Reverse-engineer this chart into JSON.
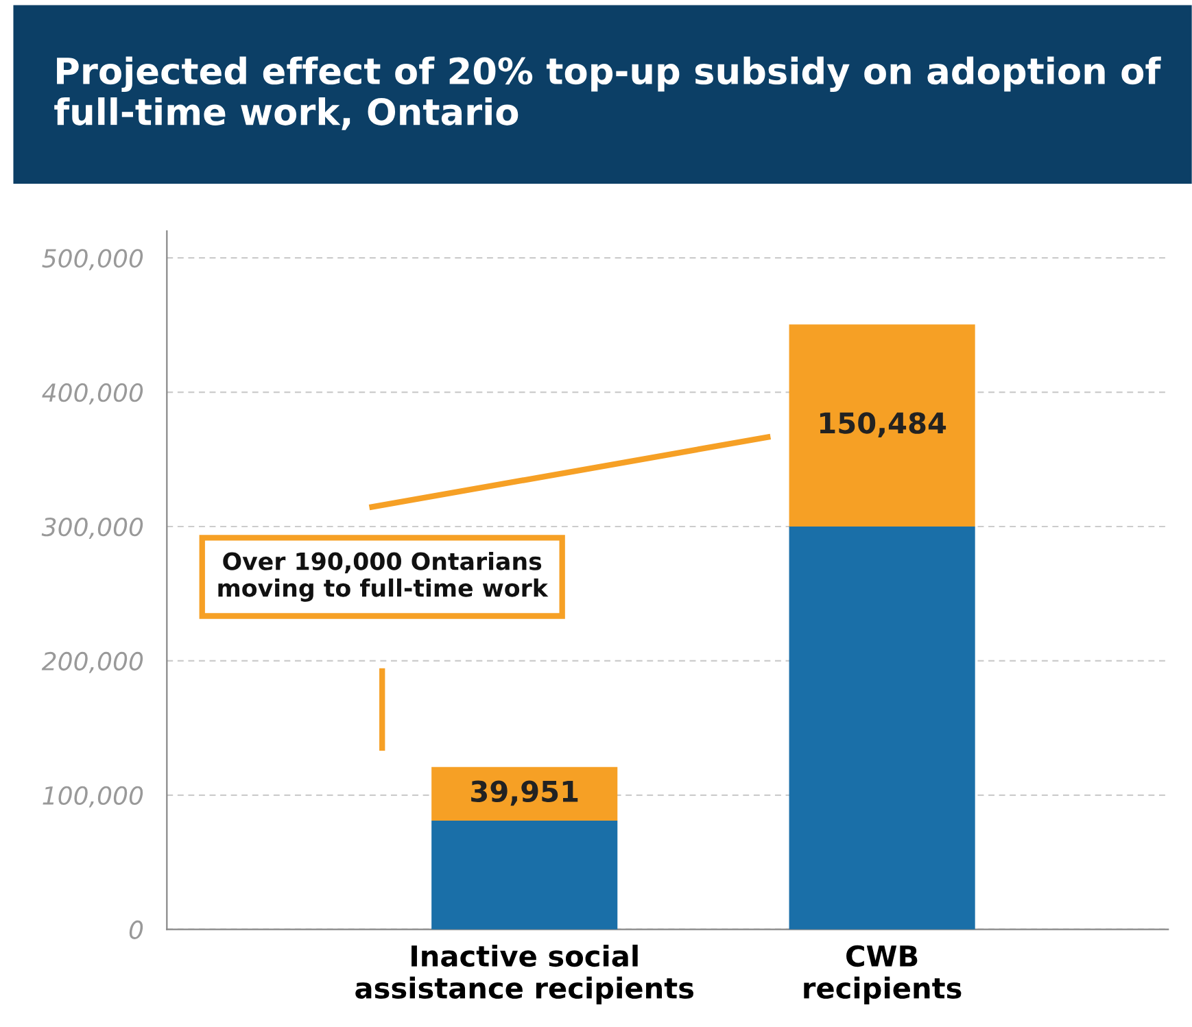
{
  "chart_data": {
    "type": "bar",
    "title": "Projected effect of 20% top-up subsidy on adoption of full-time work, Ontario",
    "categories": [
      "Inactive social\nassistance recipients",
      "CWB\nrecipients"
    ],
    "stacked": true,
    "series": [
      {
        "color": "#1a6fa8",
        "values": [
          81000,
          300000
        ]
      },
      {
        "color": "#f6a025",
        "values": [
          39951,
          150484
        ],
        "value_labels": [
          "39,951",
          "150,484"
        ]
      }
    ],
    "ylim": [
      0,
      520000
    ],
    "yticks": [
      {
        "value": 0,
        "label": "0"
      },
      {
        "value": 100000,
        "label": "100,000"
      },
      {
        "value": 200000,
        "label": "200,000"
      },
      {
        "value": 300000,
        "label": "300,000"
      },
      {
        "value": 400000,
        "label": "400,000"
      },
      {
        "value": 500000,
        "label": "500,000"
      }
    ],
    "grid": "y",
    "annotations": [
      "Over 190,000 Ontarians\nmoving to full-time work"
    ]
  }
}
